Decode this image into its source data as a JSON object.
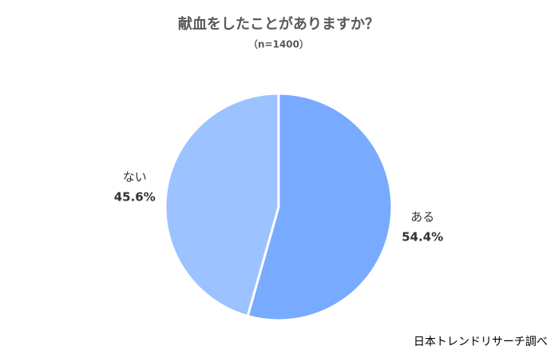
{
  "chart_data": {
    "type": "pie",
    "title": "献血をしたことがありますか？",
    "subtitle": "（n=1400）",
    "categories": [
      "ある",
      "ない"
    ],
    "values": [
      54.4,
      45.6
    ],
    "value_labels": [
      "54.4%",
      "45.6%"
    ],
    "colors": [
      "#78aaff",
      "#9cc2ff"
    ],
    "source": "日本トレンドリサーチ調べ"
  }
}
